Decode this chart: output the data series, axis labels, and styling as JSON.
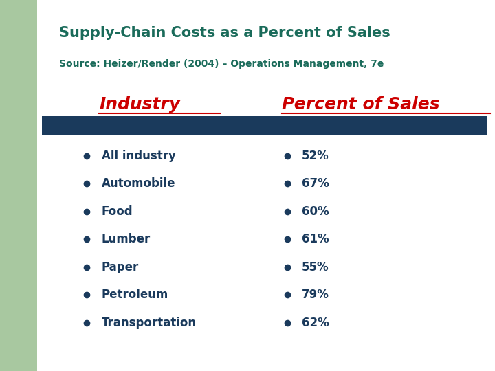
{
  "title": "Supply-Chain Costs as a Percent of Sales",
  "source": "Source: Heizer/Render (2004) – Operations Management, 7e",
  "col1_header": "Industry",
  "col2_header": "Percent of Sales",
  "industries": [
    "All industry",
    "Automobile",
    "Food",
    "Lumber",
    "Paper",
    "Petroleum",
    "Transportation"
  ],
  "percentages": [
    "52%",
    "67%",
    "60%",
    "61%",
    "55%",
    "79%",
    "62%"
  ],
  "title_color": "#1a6b5a",
  "source_color": "#1a6b5a",
  "header_color": "#cc0000",
  "text_color": "#1a3a5c",
  "bullet_color": "#1a3a5c",
  "bar_color": "#1a3a5c",
  "background_color": "#ffffff",
  "left_panel_color": "#a8c8a0"
}
